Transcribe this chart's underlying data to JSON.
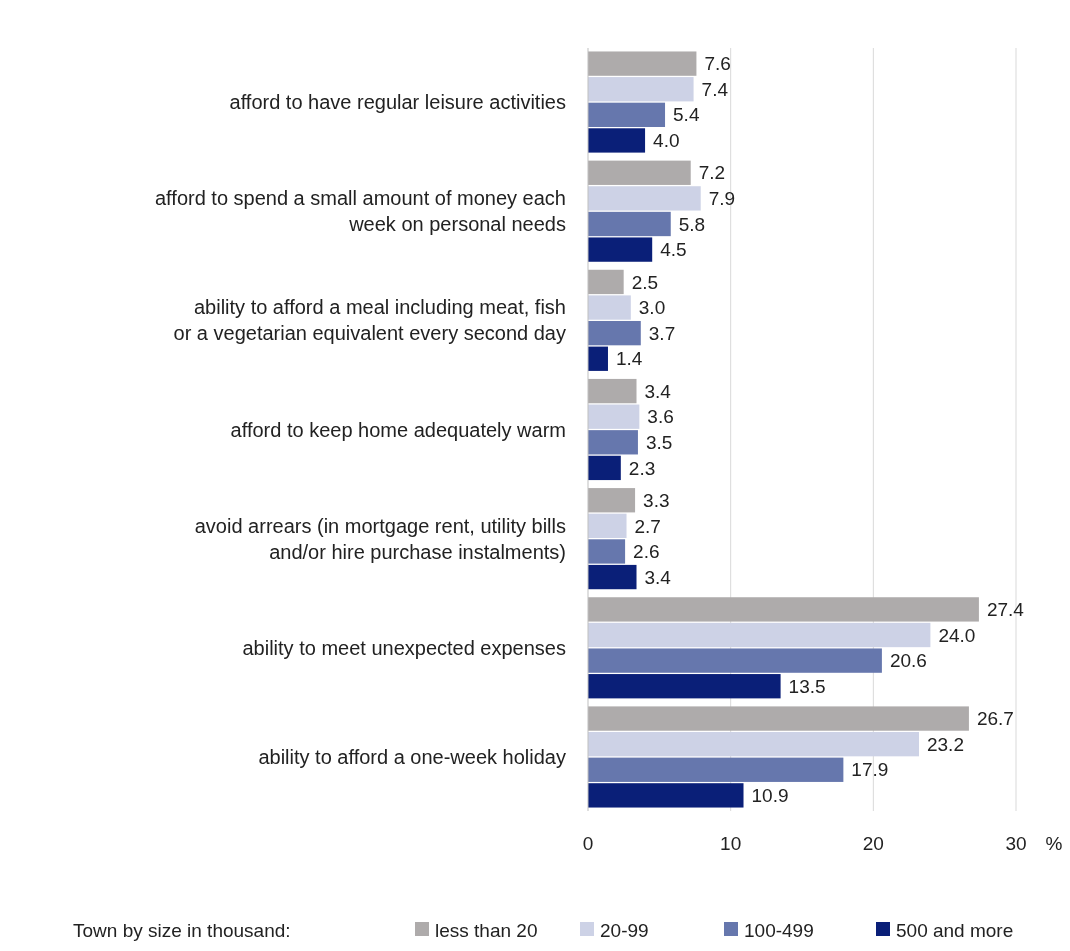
{
  "chart_data": {
    "type": "bar",
    "orientation": "horizontal",
    "categories": [
      "afford to have regular leisure activities",
      "afford to spend a small amount of money each week on personal needs",
      "ability to afford a meal including meat, fish or a vegetarian equivalent every second day",
      "afford to keep home adequately warm",
      "avoid arrears (in mortgage rent, utility bills and/or hire purchase instalments)",
      "ability to meet unexpected expenses",
      "ability to afford a one-week holiday"
    ],
    "series": [
      {
        "name": "less than 20",
        "color": "#aeabab",
        "values": [
          7.6,
          7.2,
          2.5,
          3.4,
          3.3,
          27.4,
          26.7
        ],
        "value_labels": [
          "7.6",
          "7.2",
          "2.5",
          "3.4",
          "3.3",
          "27.4",
          "26.7"
        ]
      },
      {
        "name": "20-99",
        "color": "#cdd2e6",
        "values": [
          7.4,
          7.9,
          3.0,
          3.6,
          2.7,
          24.0,
          23.2
        ],
        "value_labels": [
          "7.4",
          "7.9",
          "3.0",
          "3.6",
          "2.7",
          "24.0",
          "23.2"
        ]
      },
      {
        "name": "100-499",
        "color": "#6677ad",
        "values": [
          5.4,
          5.8,
          3.7,
          3.5,
          2.6,
          20.6,
          17.9
        ],
        "value_labels": [
          "5.4",
          "5.8",
          "3.7",
          "3.5",
          "2.6",
          "20.6",
          "17.9"
        ]
      },
      {
        "name": "500 and more",
        "color": "#0a1f78",
        "values": [
          4.0,
          4.5,
          1.4,
          2.3,
          3.4,
          13.5,
          10.9
        ],
        "value_labels": [
          "4.0",
          "4.5",
          "1.4",
          "2.3",
          "3.4",
          "13.5",
          "10.9"
        ]
      }
    ],
    "xlim": [
      0,
      30
    ],
    "xticks": [
      0,
      10,
      20,
      30
    ],
    "xlabel": "%",
    "grid": "x",
    "legend": "bottom",
    "legend_title": "Town by size in thousand:"
  }
}
